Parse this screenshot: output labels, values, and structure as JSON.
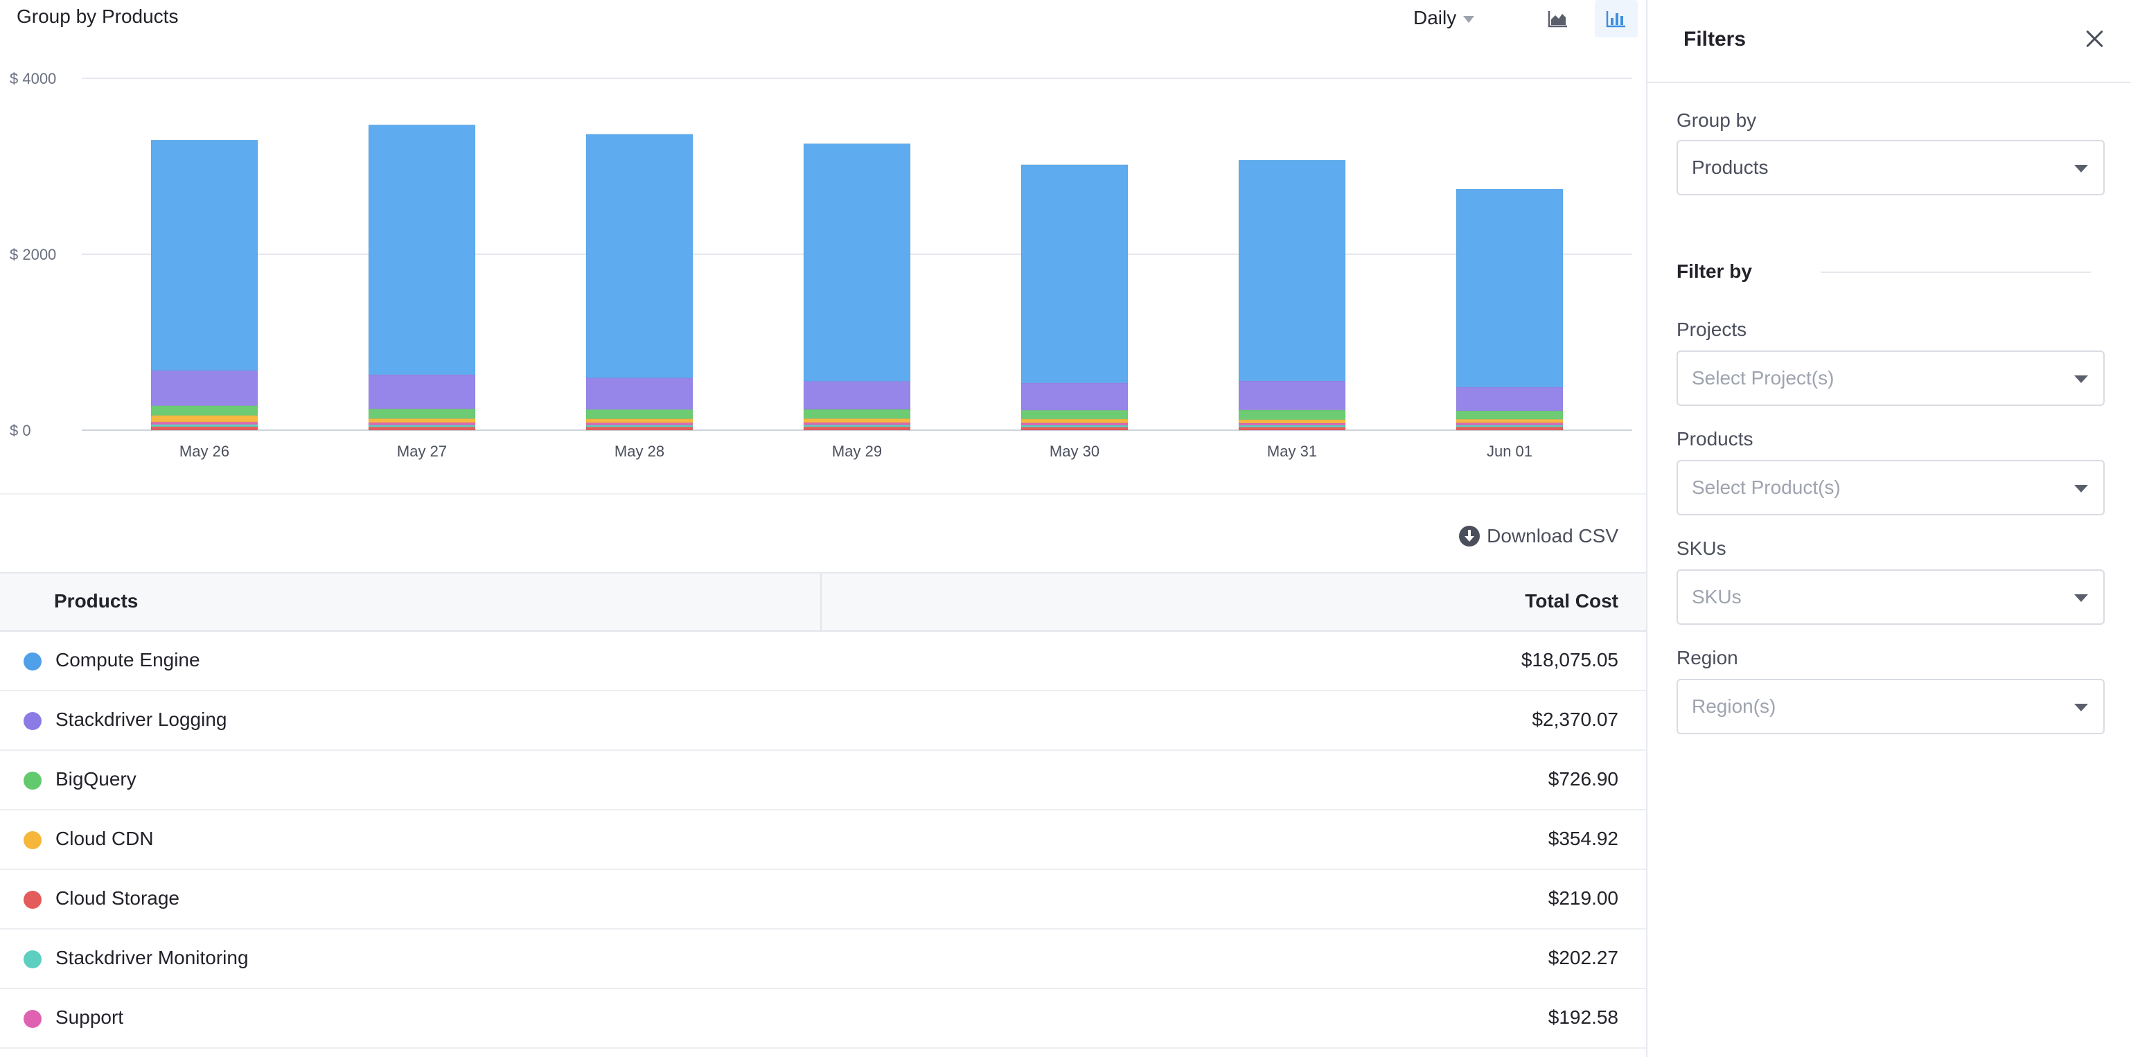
{
  "chart_header": {
    "title": "Group by Products",
    "period": "Daily",
    "icons": {
      "area_toggle": "area-chart-icon",
      "bar_toggle": "bar-chart-icon"
    }
  },
  "chart_data": {
    "type": "bar",
    "stacked": true,
    "title": "",
    "xlabel": "",
    "ylabel": "",
    "ylim": [
      0,
      4000
    ],
    "y_ticks": [
      "$ 0",
      "$ 2000",
      "$ 4000"
    ],
    "y_tick_values": [
      0,
      2000,
      4000
    ],
    "grid": true,
    "categories": [
      "May 26",
      "May 27",
      "May 28",
      "May 29",
      "May 30",
      "May 31",
      "Jun 01"
    ],
    "series": [
      {
        "name": "Cloud Storage",
        "color": "#e3605c",
        "values": [
          40,
          36,
          36,
          38,
          34,
          34,
          36
        ]
      },
      {
        "name": "Stackdriver Monitoring",
        "color": "#5cd1c2",
        "values": [
          25,
          22,
          22,
          22,
          22,
          22,
          22
        ]
      },
      {
        "name": "Support",
        "color": "#df67b6",
        "values": [
          28,
          28,
          26,
          26,
          26,
          24,
          26
        ]
      },
      {
        "name": "Cloud CDN",
        "color": "#f5b840",
        "values": [
          75,
          45,
          45,
          45,
          45,
          40,
          40
        ]
      },
      {
        "name": "BigQuery",
        "color": "#6dcc73",
        "values": [
          110,
          110,
          105,
          105,
          100,
          110,
          96
        ]
      },
      {
        "name": "Stackdriver Logging",
        "color": "#9686ea",
        "values": [
          400,
          390,
          360,
          320,
          310,
          330,
          270
        ]
      },
      {
        "name": "Compute Engine",
        "color": "#5eacef",
        "values": [
          2620,
          2840,
          2770,
          2700,
          2480,
          2510,
          2250
        ]
      }
    ]
  },
  "table": {
    "download_label": "Download CSV",
    "download_icon": "download-circle-icon",
    "headers": {
      "products": "Products",
      "total_cost": "Total Cost"
    },
    "rows": [
      {
        "name": "Compute Engine",
        "cost": "$18,075.05",
        "color": "#4f9fe9"
      },
      {
        "name": "Stackdriver Logging",
        "cost": "$2,370.07",
        "color": "#8b7be5"
      },
      {
        "name": "BigQuery",
        "cost": "$726.90",
        "color": "#63c96d"
      },
      {
        "name": "Cloud CDN",
        "cost": "$354.92",
        "color": "#f5b63a"
      },
      {
        "name": "Cloud Storage",
        "cost": "$219.00",
        "color": "#e35b5b"
      },
      {
        "name": "Stackdriver Monitoring",
        "cost": "$202.27",
        "color": "#5ccfc0"
      },
      {
        "name": "Support",
        "cost": "$192.58",
        "color": "#df62b2"
      }
    ]
  },
  "filters": {
    "title": "Filters",
    "close_icon": "close-icon",
    "group_by": {
      "label": "Group by",
      "value": "Products"
    },
    "filter_by_label": "Filter by",
    "projects": {
      "label": "Projects",
      "placeholder": "Select Project(s)"
    },
    "products": {
      "label": "Products",
      "placeholder": "Select Product(s)"
    },
    "skus": {
      "label": "SKUs",
      "placeholder": "SKUs"
    },
    "region": {
      "label": "Region",
      "placeholder": "Region(s)"
    }
  }
}
